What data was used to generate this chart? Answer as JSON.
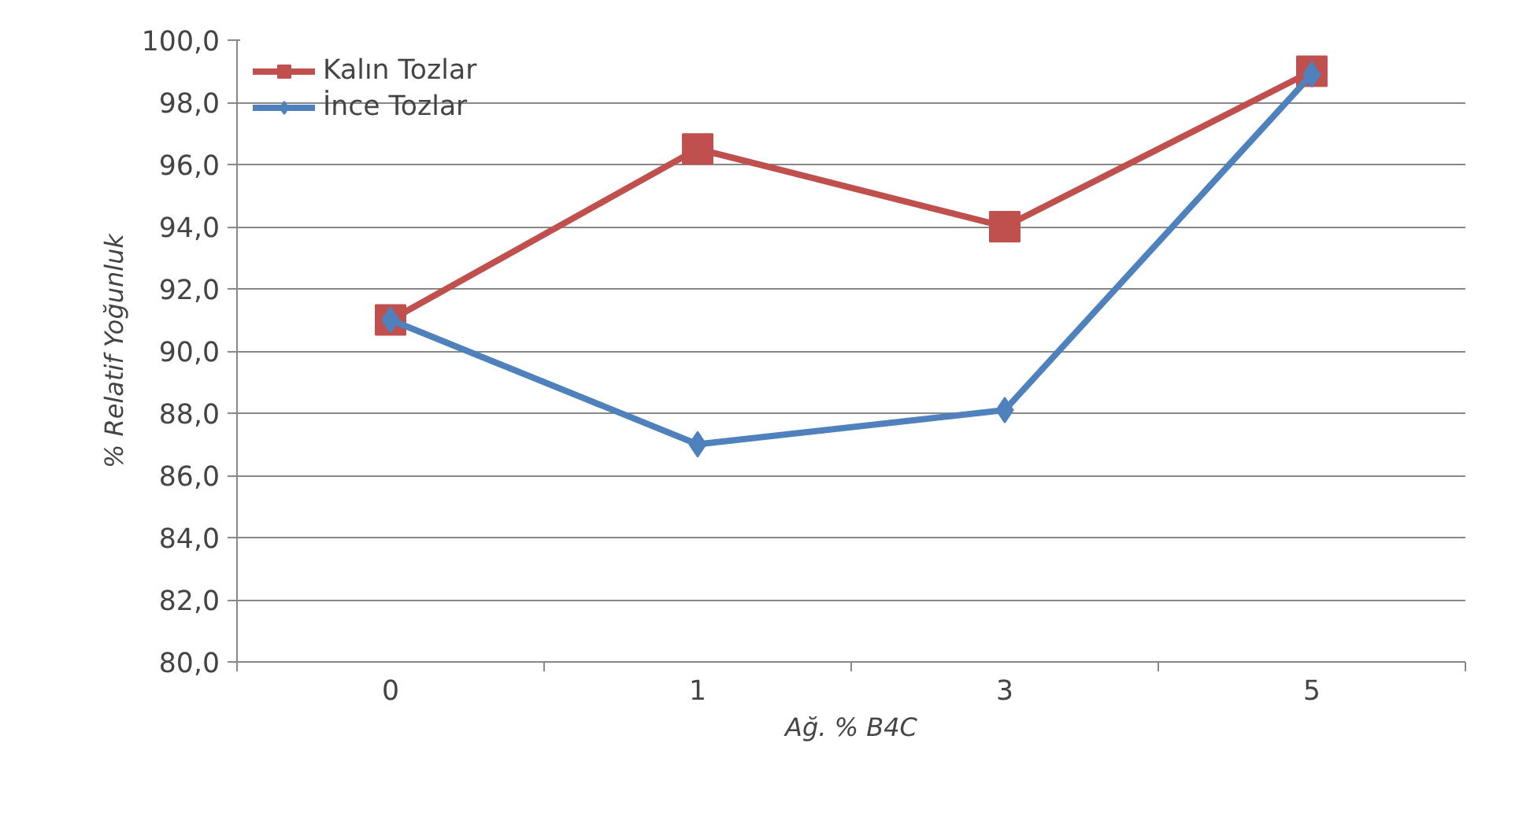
{
  "chart_data": {
    "type": "line",
    "xlabel": "Ağ. % B4C",
    "ylabel": "% Relatif Yoğunluk",
    "categories": [
      "0",
      "1",
      "3",
      "5"
    ],
    "series": [
      {
        "name": "Kalın Tozlar",
        "color": "#c0504d",
        "marker": "square",
        "values": [
          91.0,
          96.5,
          94.0,
          99.0
        ]
      },
      {
        "name": "İnce Tozlar",
        "color": "#4f81bd",
        "marker": "diamond",
        "values": [
          91.0,
          87.0,
          88.1,
          98.9
        ]
      }
    ],
    "ylim": [
      80,
      100
    ],
    "yticks": [
      {
        "value": 80,
        "label": "80,0"
      },
      {
        "value": 82,
        "label": "82,0"
      },
      {
        "value": 84,
        "label": "84,0"
      },
      {
        "value": 86,
        "label": "86,0"
      },
      {
        "value": 88,
        "label": "88,0"
      },
      {
        "value": 90,
        "label": "90,0"
      },
      {
        "value": 92,
        "label": "92,0"
      },
      {
        "value": 94,
        "label": "94,0"
      },
      {
        "value": 96,
        "label": "96,0"
      },
      {
        "value": 98,
        "label": "98,0"
      },
      {
        "value": 100,
        "label": "100,0"
      }
    ],
    "grid": "y",
    "legend": "top left",
    "line_style": "solid"
  }
}
